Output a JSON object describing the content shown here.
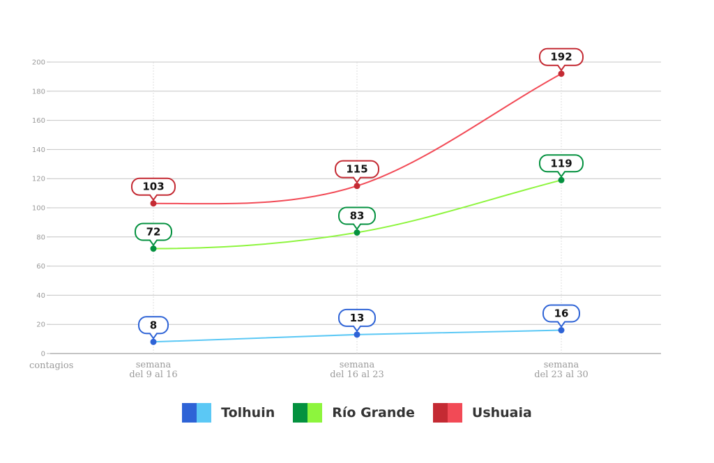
{
  "chart_data": {
    "type": "line",
    "categories": [
      [
        "semana",
        "del 9 al 16"
      ],
      [
        "semana",
        "del 16 al 23"
      ],
      [
        "semana",
        "del 23 al 30"
      ]
    ],
    "ylabel": "contagios",
    "ylim": [
      0,
      200
    ],
    "yticks": [
      0,
      20,
      40,
      60,
      80,
      100,
      120,
      140,
      160,
      180,
      200
    ],
    "grid": true,
    "legend_position": "bottom",
    "series": [
      {
        "name": "Tolhuin",
        "values": [
          8,
          13,
          16
        ],
        "color": "#5bc8f5",
        "dark": "#2e63d6"
      },
      {
        "name": "Río Grande",
        "values": [
          72,
          83,
          119
        ],
        "color": "#8df53d",
        "dark": "#04913f"
      },
      {
        "name": "Ushuaia",
        "values": [
          103,
          115,
          192
        ],
        "color": "#f24a56",
        "dark": "#c42a33"
      }
    ]
  }
}
